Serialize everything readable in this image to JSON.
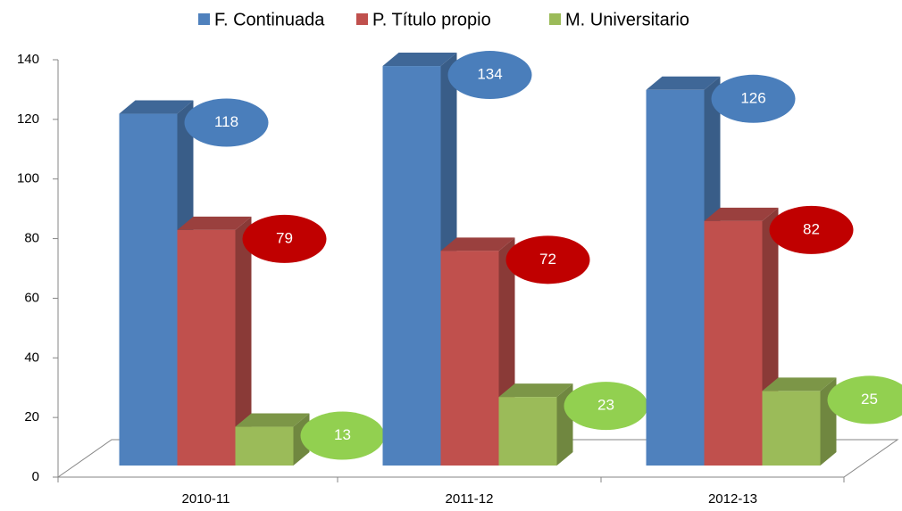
{
  "chart_data": {
    "type": "bar3d",
    "categories": [
      "2010-11",
      "2011-12",
      "2012-13"
    ],
    "series": [
      {
        "name": "F. Continuada",
        "color": "#4f81bd",
        "label_color": "#4a7ebb",
        "values": [
          118,
          134,
          126
        ]
      },
      {
        "name": "P. Título propio",
        "color": "#c0504d",
        "label_color": "#c00000",
        "values": [
          79,
          72,
          82
        ]
      },
      {
        "name": "M. Universitario",
        "color": "#9bbb59",
        "label_color": "#92d050",
        "values": [
          13,
          23,
          25
        ]
      }
    ],
    "ylim": [
      0,
      140
    ],
    "yticks": [
      0,
      20,
      40,
      60,
      80,
      100,
      120,
      140
    ],
    "legend": "top"
  }
}
